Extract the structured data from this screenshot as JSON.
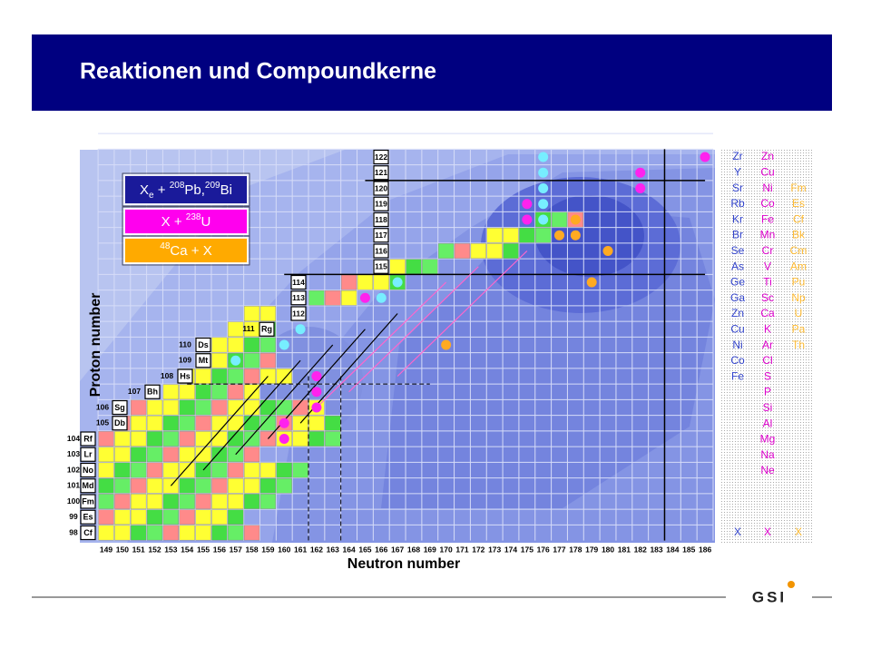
{
  "header": {
    "title": "Reaktionen und Compoundkerne"
  },
  "legend": [
    {
      "parts": [
        {
          "t": "X"
        },
        {
          "t": "e",
          "sub": true
        },
        {
          "t": " + "
        },
        {
          "t": "208",
          "sup": true
        },
        {
          "t": "Pb,"
        },
        {
          "t": "209",
          "sup": true
        },
        {
          "t": "Bi"
        }
      ]
    },
    {
      "parts": [
        {
          "t": "X + "
        },
        {
          "t": "238",
          "sup": true
        },
        {
          "t": "U"
        }
      ]
    },
    {
      "parts": [
        {
          "t": "48",
          "sup": true
        },
        {
          "t": "Ca + X"
        }
      ]
    }
  ],
  "axes": {
    "x_label": "Neutron number",
    "y_label": "Proton number",
    "neutron_numbers": [
      "149",
      "150",
      "151",
      "152",
      "153",
      "154",
      "155",
      "156",
      "157",
      "158",
      "159",
      "160",
      "161",
      "162",
      "163",
      "164",
      "165",
      "166",
      "167",
      "168",
      "169",
      "170",
      "171",
      "172",
      "173",
      "174",
      "175",
      "176",
      "177",
      "178",
      "179",
      "180",
      "181",
      "182",
      "183",
      "184",
      "185",
      "186"
    ],
    "proton_rows": [
      {
        "z": "98",
        "symbol": "Cf"
      },
      {
        "z": "99",
        "symbol": "Es"
      },
      {
        "z": "100",
        "symbol": "Fm"
      },
      {
        "z": "101",
        "symbol": "Md"
      },
      {
        "z": "102",
        "symbol": "No"
      },
      {
        "z": "103",
        "symbol": "Lr"
      },
      {
        "z": "104",
        "symbol": "Rf"
      },
      {
        "z": "105",
        "symbol": "Db"
      },
      {
        "z": "106",
        "symbol": "Sg"
      },
      {
        "z": "107",
        "symbol": "Bh"
      },
      {
        "z": "108",
        "symbol": "Hs"
      },
      {
        "z": "109",
        "symbol": "Mt"
      },
      {
        "z": "110",
        "symbol": "Ds"
      },
      {
        "z": "111",
        "symbol": "Rg"
      },
      {
        "z": "112"
      },
      {
        "z": "113"
      },
      {
        "z": "114"
      },
      {
        "z": "115"
      },
      {
        "z": "116"
      },
      {
        "z": "117"
      },
      {
        "z": "118"
      },
      {
        "z": "119"
      },
      {
        "z": "120"
      },
      {
        "z": "121"
      },
      {
        "z": "122"
      }
    ]
  },
  "projectiles": {
    "xe_pb_bi": [
      "Zr",
      "Y",
      "Sr",
      "Rb",
      "Kr",
      "Br",
      "Se",
      "As",
      "Ge",
      "Ga",
      "Zn",
      "Cu",
      "Ni",
      "Co",
      "Fe"
    ],
    "x_u": [
      "Zn",
      "Cu",
      "Ni",
      "Co",
      "Fe",
      "Mn",
      "Cr",
      "V",
      "Ti",
      "Sc",
      "Ca",
      "K",
      "Ar",
      "Cl",
      "S",
      "P",
      "Si",
      "Al",
      "Mg",
      "Na",
      "Ne"
    ],
    "ca_x": [
      "Fm",
      "Es",
      "Cf",
      "Bk",
      "Cm",
      "Am",
      "Pu",
      "Np",
      "U",
      "Pa",
      "Th"
    ],
    "bottom": [
      "X",
      "X",
      "X"
    ]
  },
  "footer": {
    "logo": "GSI"
  }
}
